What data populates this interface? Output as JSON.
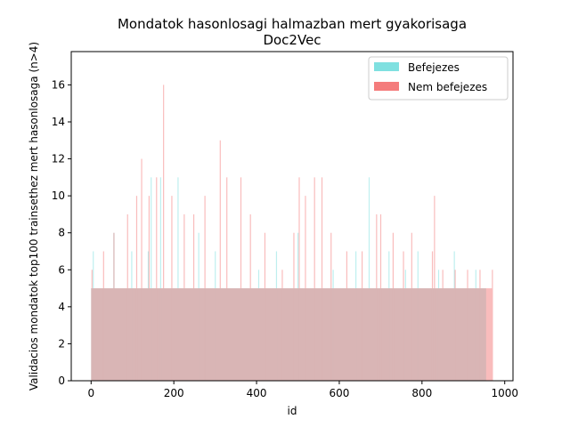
{
  "chart_data": {
    "type": "bar",
    "title": "Mondatok hasonlosagi halmazban mert gyakorisaga",
    "subtitle": "Doc2Vec",
    "xlabel": "id",
    "ylabel": "Validacios mondatok top100 trainsethez mert hasonlosaga (n>4)",
    "xlim": [
      -48,
      1020
    ],
    "ylim": [
      0,
      17.8
    ],
    "x_ticks": [
      0,
      200,
      400,
      600,
      800,
      1000
    ],
    "x_tick_labels": [
      "0",
      "200",
      "400",
      "600",
      "800",
      "1000"
    ],
    "y_ticks": [
      0,
      2,
      4,
      6,
      8,
      10,
      12,
      14,
      16
    ],
    "y_tick_labels": [
      "0",
      "2",
      "4",
      "6",
      "8",
      "10",
      "12",
      "14",
      "16"
    ],
    "grid": false,
    "legend_position": "top-right",
    "series": [
      {
        "name": "Befejezes",
        "color": "#7fe0e0",
        "x": [
          0,
          100,
          200,
          300,
          400,
          500,
          600,
          700,
          800,
          900,
          955
        ],
        "values": [
          5,
          5,
          5,
          5,
          5,
          5,
          5,
          5,
          5,
          5,
          5
        ],
        "peaks": [
          {
            "x": 5,
            "value": 7
          },
          {
            "x": 55,
            "value": 8
          },
          {
            "x": 98,
            "value": 7
          },
          {
            "x": 138,
            "value": 7
          },
          {
            "x": 145,
            "value": 11
          },
          {
            "x": 168,
            "value": 11
          },
          {
            "x": 210,
            "value": 11
          },
          {
            "x": 260,
            "value": 8
          },
          {
            "x": 300,
            "value": 7
          },
          {
            "x": 405,
            "value": 6
          },
          {
            "x": 448,
            "value": 7
          },
          {
            "x": 500,
            "value": 8
          },
          {
            "x": 585,
            "value": 6
          },
          {
            "x": 640,
            "value": 7
          },
          {
            "x": 672,
            "value": 11
          },
          {
            "x": 720,
            "value": 7
          },
          {
            "x": 760,
            "value": 6
          },
          {
            "x": 790,
            "value": 7
          },
          {
            "x": 840,
            "value": 6
          },
          {
            "x": 878,
            "value": 7
          },
          {
            "x": 930,
            "value": 6
          }
        ]
      },
      {
        "name": "Nem befejezes",
        "color": "#f47c7c",
        "x": [
          0,
          100,
          200,
          300,
          400,
          500,
          600,
          700,
          800,
          900,
          970
        ],
        "values": [
          5,
          5,
          5,
          5,
          5,
          5,
          5,
          5,
          5,
          5,
          5
        ],
        "peaks": [
          {
            "x": 2,
            "value": 6
          },
          {
            "x": 30,
            "value": 7
          },
          {
            "x": 55,
            "value": 8
          },
          {
            "x": 88,
            "value": 9
          },
          {
            "x": 110,
            "value": 10
          },
          {
            "x": 122,
            "value": 12
          },
          {
            "x": 140,
            "value": 10
          },
          {
            "x": 158,
            "value": 11
          },
          {
            "x": 175,
            "value": 16
          },
          {
            "x": 195,
            "value": 10
          },
          {
            "x": 225,
            "value": 9
          },
          {
            "x": 248,
            "value": 9
          },
          {
            "x": 275,
            "value": 10
          },
          {
            "x": 312,
            "value": 13
          },
          {
            "x": 328,
            "value": 11
          },
          {
            "x": 362,
            "value": 11
          },
          {
            "x": 385,
            "value": 9
          },
          {
            "x": 420,
            "value": 8
          },
          {
            "x": 462,
            "value": 6
          },
          {
            "x": 490,
            "value": 8
          },
          {
            "x": 503,
            "value": 11
          },
          {
            "x": 518,
            "value": 10
          },
          {
            "x": 540,
            "value": 11
          },
          {
            "x": 558,
            "value": 11
          },
          {
            "x": 580,
            "value": 8
          },
          {
            "x": 618,
            "value": 7
          },
          {
            "x": 655,
            "value": 7
          },
          {
            "x": 690,
            "value": 9
          },
          {
            "x": 700,
            "value": 9
          },
          {
            "x": 730,
            "value": 8
          },
          {
            "x": 755,
            "value": 7
          },
          {
            "x": 775,
            "value": 8
          },
          {
            "x": 825,
            "value": 7
          },
          {
            "x": 830,
            "value": 10
          },
          {
            "x": 850,
            "value": 6
          },
          {
            "x": 880,
            "value": 6
          },
          {
            "x": 910,
            "value": 6
          },
          {
            "x": 940,
            "value": 6
          },
          {
            "x": 970,
            "value": 6
          }
        ]
      }
    ]
  }
}
